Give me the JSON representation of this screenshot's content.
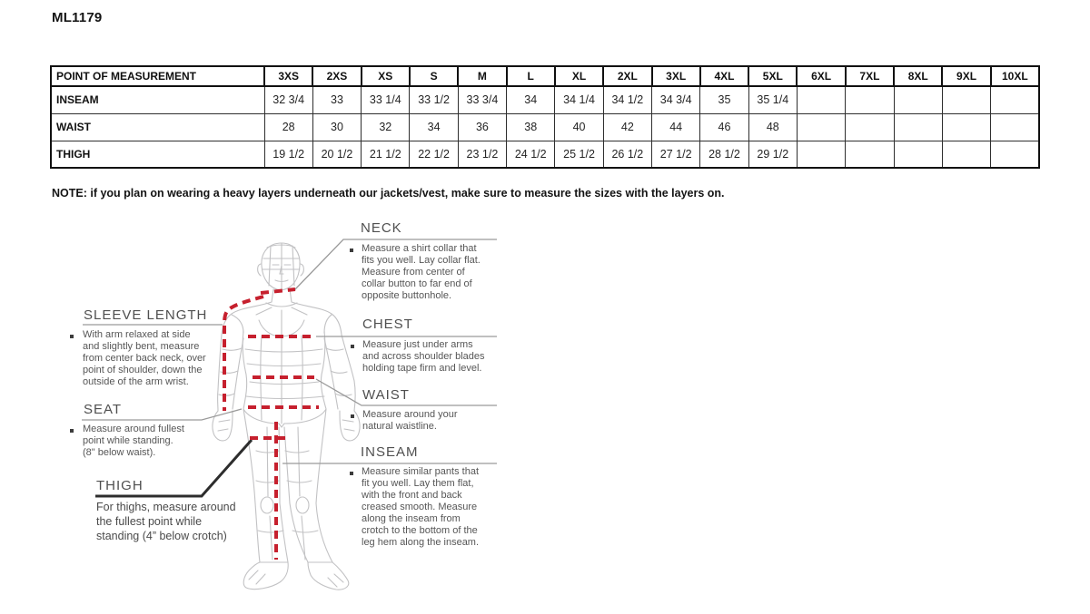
{
  "page": {
    "title": "ML1179"
  },
  "size_chart": {
    "header": [
      "POINT OF MEASUREMENT",
      "3XS",
      "2XS",
      "XS",
      "S",
      "M",
      "L",
      "XL",
      "2XL",
      "3XL",
      "4XL",
      "5XL",
      "6XL",
      "7XL",
      "8XL",
      "9XL",
      "10XL"
    ],
    "rows": [
      {
        "label": "INSEAM",
        "values": [
          "32 3/4",
          "33",
          "33 1/4",
          "33 1/2",
          "33 3/4",
          "34",
          "34 1/4",
          "34 1/2",
          "34 3/4",
          "35",
          "35 1/4",
          "",
          "",
          "",
          "",
          ""
        ]
      },
      {
        "label": "WAIST",
        "values": [
          "28",
          "30",
          "32",
          "34",
          "36",
          "38",
          "40",
          "42",
          "44",
          "46",
          "48",
          "",
          "",
          "",
          "",
          ""
        ]
      },
      {
        "label": "THIGH",
        "values": [
          "19 1/2",
          "20 1/2",
          "21 1/2",
          "22 1/2",
          "23 1/2",
          "24 1/2",
          "25 1/2",
          "26 1/2",
          "27 1/2",
          "28 1/2",
          "29 1/2",
          "",
          "",
          "",
          "",
          ""
        ]
      }
    ]
  },
  "note": "NOTE: if you plan on wearing a heavy layers underneath our jackets/vest, make sure to measure the sizes with the layers on.",
  "diagram": {
    "neck": {
      "title": "NECK",
      "desc": "Measure a shirt collar that\nfits you well. Lay collar flat.\nMeasure from center of\ncollar button to far end of\nopposite buttonhole."
    },
    "chest": {
      "title": "CHEST",
      "desc": "Measure just under arms\nand across shoulder blades\nholding tape firm and level."
    },
    "waist": {
      "title": "WAIST",
      "desc": "Measure around your\nnatural waistline."
    },
    "inseam": {
      "title": "INSEAM",
      "desc": "Measure similar pants that\nfit you well. Lay them flat,\nwith the front and back\ncreased smooth. Measure\nalong the inseam from\ncrotch to the bottom of the\nleg hem along the inseam."
    },
    "sleeve_length": {
      "title": "SLEEVE LENGTH",
      "desc": "With arm relaxed at side\nand slightly bent, measure\nfrom center back neck, over\npoint of shoulder, down the\noutside of the arm wrist."
    },
    "seat": {
      "title": "SEAT",
      "desc": "Measure around fullest\npoint while standing.\n(8\" below waist)."
    },
    "thigh": {
      "title": "THIGH",
      "desc": "For thighs, measure around\nthe fullest point while\nstanding (4” below crotch)"
    },
    "colors": {
      "measure_line": "#c6202e",
      "body_wireframe": "#c2c2c4",
      "leader_line": "#9a9a9a",
      "thigh_leader": "#2d2d2d"
    }
  }
}
